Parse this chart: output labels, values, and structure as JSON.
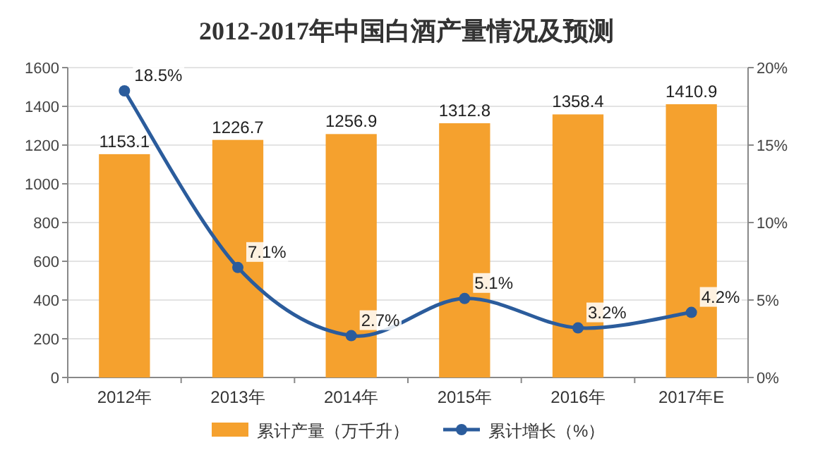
{
  "chart_data": {
    "type": "bar",
    "title": "2012-2017年中国白酒产量情况及预测",
    "categories": [
      "2012年",
      "2013年",
      "2014年",
      "2015年",
      "2016年",
      "2017年E"
    ],
    "series": [
      {
        "name": "累计产量（万千升）",
        "color": "#f5a12e",
        "values": [
          1153.1,
          1226.7,
          1256.9,
          1312.8,
          1358.4,
          1410.9
        ],
        "value_labels": [
          "1153.1",
          "1226.7",
          "1256.9",
          "1312.8",
          "1358.4",
          "1410.9"
        ]
      },
      {
        "name": "累计增长（%）",
        "type": "line",
        "axis": "y2",
        "color": "#2b5c9c",
        "marker": "circle",
        "values": [
          18.5,
          7.1,
          2.7,
          5.1,
          3.2,
          4.2
        ],
        "value_labels": [
          "18.5%",
          "7.1%",
          "2.7%",
          "5.1%",
          "3.2%",
          "4.2%"
        ]
      }
    ],
    "ylim": [
      0,
      1600
    ],
    "yticks": [
      0,
      200,
      400,
      600,
      800,
      1000,
      1200,
      1400,
      1600
    ],
    "y2lim": [
      0,
      20
    ],
    "y2ticks": [
      {
        "value": 0,
        "label": "0%"
      },
      {
        "value": 5,
        "label": "5%"
      },
      {
        "value": 10,
        "label": "10%"
      },
      {
        "value": 15,
        "label": "15%"
      },
      {
        "value": 20,
        "label": "20%"
      }
    ],
    "grid": "y",
    "legend": "bottom"
  }
}
